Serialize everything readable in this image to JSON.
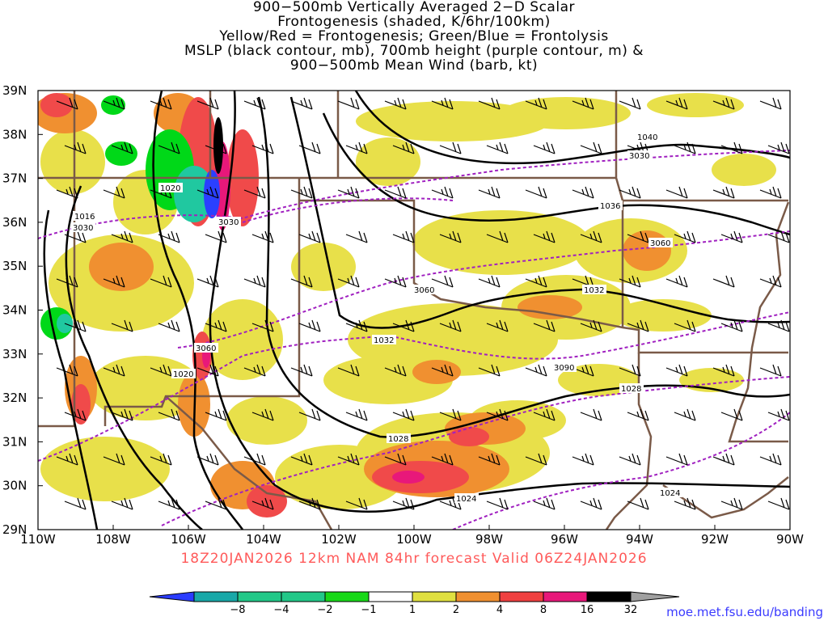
{
  "title_lines": [
    "900−500mb Vertically Averaged 2−D Scalar",
    "Frontogenesis (shaded, K/6hr/100km)",
    "Yellow/Red = Frontogenesis;  Green/Blue = Frontolysis",
    "MSLP (black contour, mb), 700mb height (purple contour, m) &",
    "900−500mb Mean Wind (barb, kt)"
  ],
  "subtitle": "18Z20JAN2026 12km NAM 84hr forecast Valid 06Z24JAN2026",
  "credit": "moe.met.fsu.edu/banding",
  "axes": {
    "lat_labels": [
      "39N",
      "38N",
      "37N",
      "36N",
      "35N",
      "34N",
      "33N",
      "32N",
      "31N",
      "30N",
      "29N"
    ],
    "lon_labels": [
      "110W",
      "108W",
      "106W",
      "104W",
      "102W",
      "100W",
      "98W",
      "96W",
      "94W",
      "92W",
      "90W"
    ],
    "lat_values": [
      39,
      38,
      37,
      36,
      35,
      34,
      33,
      32,
      31,
      30,
      29
    ],
    "lon_values": [
      -110,
      -108,
      -106,
      -104,
      -102,
      -100,
      -98,
      -96,
      -94,
      -92,
      -90
    ]
  },
  "colorbar": {
    "labels": [
      "-8",
      "-4",
      "-2",
      "-1",
      "1",
      "2",
      "4",
      "8",
      "16",
      "32"
    ],
    "colors": [
      "#2a3cff",
      "#18a8a8",
      "#22c888",
      "#18d818",
      "#00e000",
      "#ffffff",
      "#e0e040",
      "#f09030",
      "#f04040",
      "#e8187a",
      "#000000",
      "#a0a0a0"
    ]
  },
  "colors": {
    "mslp": "#000000",
    "height": "#a020c0",
    "borders": "#7a5a48",
    "barbs": "#000000",
    "frontogenesis_weak": "#e8e04a",
    "frontogenesis_mod": "#f09030",
    "frontogenesis_strong": "#f04a4a",
    "frontogenesis_max": "#e8187a",
    "frontolysis_weak": "#00d818",
    "frontolysis_mod": "#20c8a0",
    "frontolysis_strong": "#2a40ff"
  },
  "mslp_labels": [
    "1040",
    "1036",
    "1032",
    "1032",
    "1028",
    "1028",
    "1024",
    "1024",
    "1020",
    "1020",
    "1016"
  ],
  "height_labels": [
    "3030",
    "3030",
    "3030",
    "3060",
    "3060",
    "3060",
    "3090"
  ]
}
